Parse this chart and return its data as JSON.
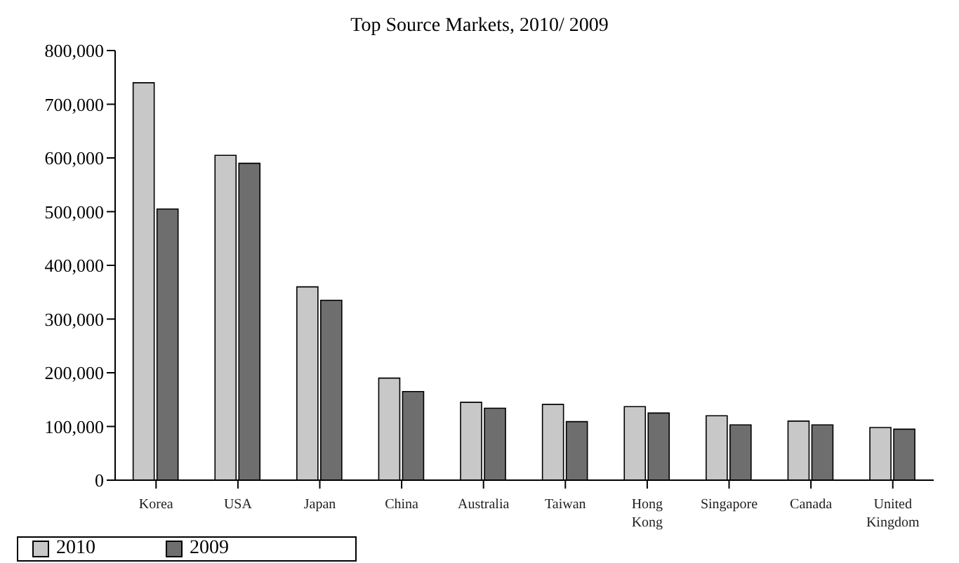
{
  "chart_data": {
    "type": "bar",
    "title": "Top Source Markets, 2010/ 2009",
    "categories": [
      "Korea",
      "USA",
      "Japan",
      "China",
      "Australia",
      "Taiwan",
      "Hong Kong",
      "Singapore",
      "Canada",
      "United Kingdom"
    ],
    "series": [
      {
        "name": "2010",
        "color": "#c8c8c8",
        "values": [
          740000,
          605000,
          360000,
          190000,
          145000,
          141000,
          137000,
          120000,
          110000,
          98000
        ]
      },
      {
        "name": "2009",
        "color": "#6e6e6e",
        "values": [
          505000,
          590000,
          335000,
          165000,
          134000,
          109000,
          125000,
          103000,
          103000,
          95000
        ]
      }
    ],
    "ylim": [
      0,
      800000
    ],
    "yticks": [
      0,
      {
        "value": 100000,
        "label": "100,000"
      },
      {
        "value": 200000,
        "label": "200,000"
      },
      {
        "value": 300000,
        "label": "300,000"
      },
      {
        "value": 400000,
        "label": "400,000"
      },
      {
        "value": 500000,
        "label": "500,000"
      },
      {
        "value": 600000,
        "label": "600,000"
      },
      {
        "value": 700000,
        "label": "700,000"
      },
      {
        "value": 800000,
        "label": "800,000"
      }
    ],
    "grid": false,
    "legend": "bottom left"
  }
}
